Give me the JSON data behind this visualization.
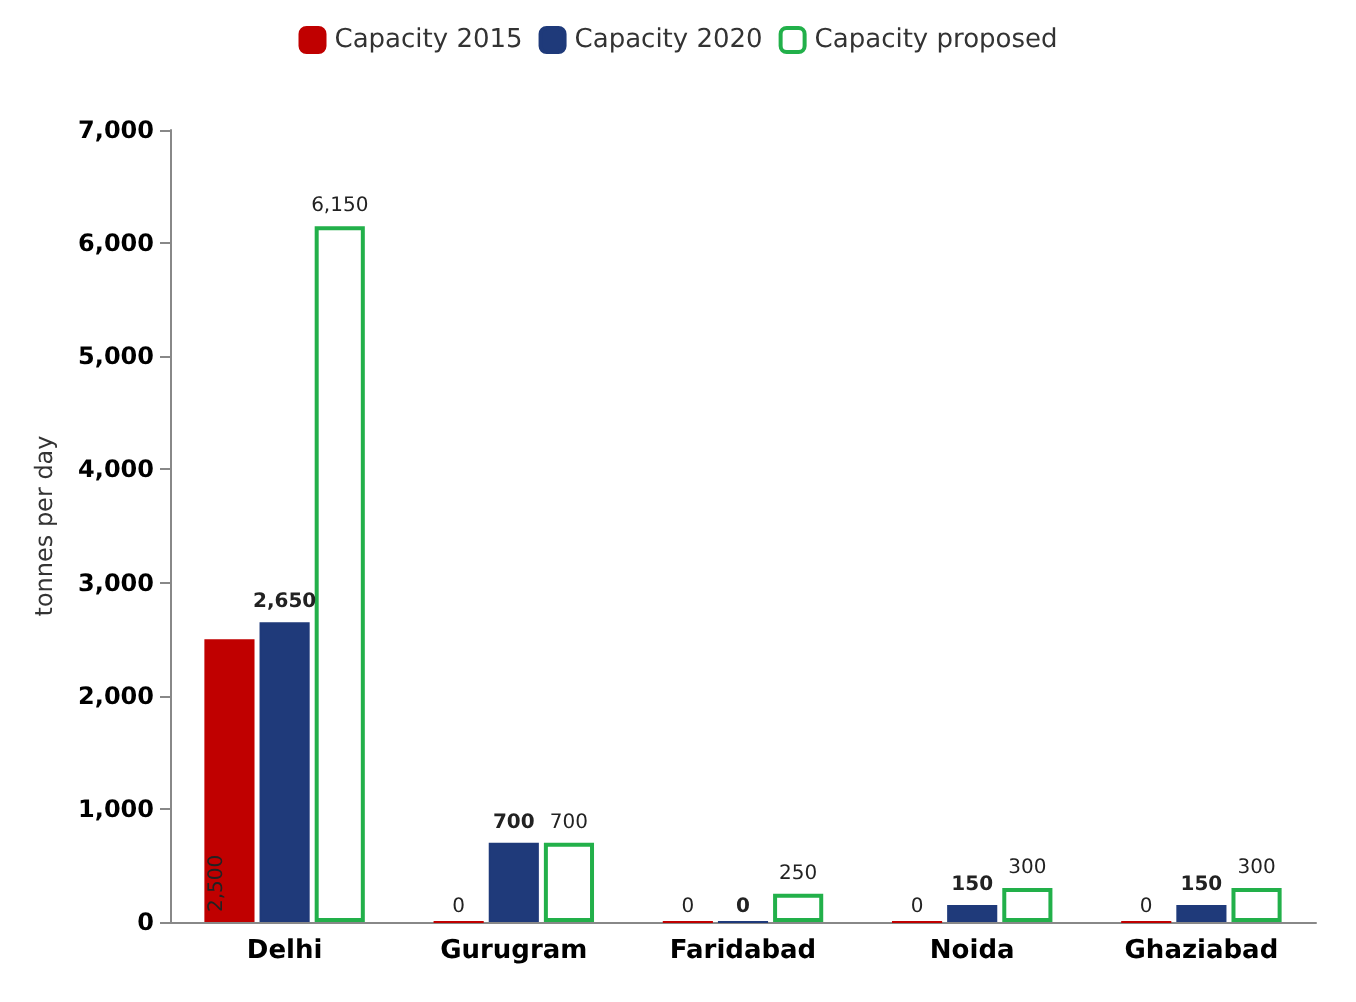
{
  "chart_data": {
    "type": "bar",
    "ylabel": "tonnes per day",
    "categories": [
      "Delhi",
      "Gurugram",
      "Faridabad",
      "Noida",
      "Ghaziabad"
    ],
    "series": [
      {
        "name": "Capacity 2015",
        "color": "#c00000",
        "values": [
          2500,
          0,
          0,
          0,
          0
        ],
        "value_labels": [
          "2,500",
          "0",
          "0",
          "0",
          "0"
        ]
      },
      {
        "name": "Capacity 2020",
        "color": "#1f3a7a",
        "values": [
          2650,
          700,
          0,
          150,
          150
        ],
        "value_labels": [
          "2,650",
          "700",
          "0",
          "150",
          "150"
        ]
      },
      {
        "name": "Capacity proposed",
        "color": "#22b04a",
        "values": [
          6150,
          700,
          250,
          300,
          300
        ],
        "value_labels": [
          "6,150",
          "700",
          "250",
          "300",
          "300"
        ]
      }
    ],
    "ylim": [
      0,
      7000
    ],
    "yticks": [
      {
        "value": 0,
        "label": "0"
      },
      {
        "value": 1000,
        "label": "1,000"
      },
      {
        "value": 2000,
        "label": "2,000"
      },
      {
        "value": 3000,
        "label": "3,000"
      },
      {
        "value": 4000,
        "label": "4,000"
      },
      {
        "value": 5000,
        "label": "5,000"
      },
      {
        "value": 6000,
        "label": "6,000"
      },
      {
        "value": 7000,
        "label": "7,000"
      }
    ],
    "grid": false,
    "legend": "top"
  }
}
